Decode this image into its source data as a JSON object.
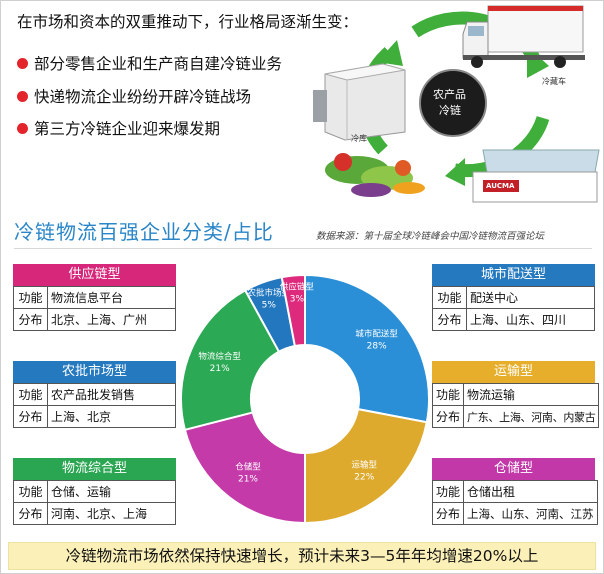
{
  "intro": "在市场和资本的双重推动下，行业格局逐渐生变：",
  "bullets": [
    "部分零售企业和生产商自建冷链业务",
    "快递物流企业纷纷开辟冷链战场",
    "第三方冷链企业迎来爆发期"
  ],
  "illustration": {
    "center_line1": "农产品",
    "center_line2": "冷链",
    "truck_caption": "冷藏车",
    "storage_caption": "冷库",
    "freezer_brand": "AUCMA"
  },
  "title": "冷链物流百强企业分类/占比",
  "source": "数据来源：第十届全球冷链峰会中国冷链物流百强论坛",
  "cards": {
    "supply": {
      "title": "供应链型",
      "rows": [
        [
          "功能",
          "物流信息平台"
        ],
        [
          "分布",
          "北京、上海、广州"
        ]
      ]
    },
    "agri": {
      "title": "农批市场型",
      "rows": [
        [
          "功能",
          "农产品批发销售"
        ],
        [
          "分布",
          "上海、北京"
        ]
      ]
    },
    "comp": {
      "title": "物流综合型",
      "rows": [
        [
          "功能",
          "仓储、运输"
        ],
        [
          "分布",
          "河南、北京、上海"
        ]
      ]
    },
    "city": {
      "title": "城市配送型",
      "rows": [
        [
          "功能",
          "配送中心"
        ],
        [
          "分布",
          "上海、山东、四川"
        ]
      ]
    },
    "trans": {
      "title": "运输型",
      "rows": [
        [
          "功能",
          "物流运输"
        ],
        [
          "分布",
          "广东、上海、河南、内蒙古"
        ]
      ]
    },
    "store": {
      "title": "仓储型",
      "rows": [
        [
          "功能",
          "仓储出租"
        ],
        [
          "分布",
          "上海、山东、河南、江苏"
        ]
      ]
    }
  },
  "chart_data": {
    "type": "pie",
    "donut": true,
    "slices": [
      {
        "label": "城市配送型",
        "value": 28,
        "display": "28%",
        "color": "#2a8fd6"
      },
      {
        "label": "运输型",
        "value": 22,
        "display": "22%",
        "color": "#ddaa2e"
      },
      {
        "label": "仓储型",
        "value": 21,
        "display": "21%",
        "color": "#c43aa8"
      },
      {
        "label": "物流综合型",
        "value": 21,
        "display": "21%",
        "color": "#2ba955"
      },
      {
        "label": "农批市场型",
        "value": 5,
        "display": "5%",
        "color": "#2277be"
      },
      {
        "label": "供应链型",
        "value": 3,
        "display": "3%",
        "color": "#dd2a7c"
      }
    ]
  },
  "banner": "冷链物流市场依然保持快速增长，预计未来3—5年年均增速20%以上"
}
